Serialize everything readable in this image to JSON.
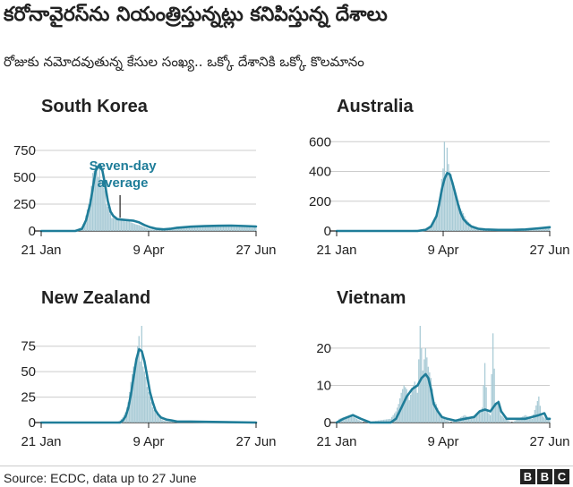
{
  "title": "కరోనావైరస్‌ను నియంత్రిస్తున్నట్లు కనిపిస్తున్న దేశాలు",
  "subtitle": "రోజుకు నమోదవుతున్న కేసుల సంఖ్య.. ఒక్కో దేశానికి ఒక్కో కొలమానం",
  "source": "Source: ECDC, data up to 27 June",
  "logo": [
    "B",
    "B",
    "C"
  ],
  "colors": {
    "bar": "#a9cbd6",
    "line": "#1f7d99",
    "axis": "#222222",
    "grid": "#cccccc",
    "text": "#222222"
  },
  "chart_data": [
    {
      "type": "bar",
      "title": "South Korea",
      "x_ticks": [
        "21 Jan",
        "9 Apr",
        "27 Jun"
      ],
      "ylim": [
        0,
        900
      ],
      "y_ticks": [
        "0",
        "250",
        "500",
        "750"
      ],
      "y_tick_values": [
        0,
        250,
        500,
        750
      ],
      "annotation": "Seven-day average",
      "annotation_lines": [
        "Seven-day",
        "average"
      ],
      "series": [
        {
          "name": "Daily cases",
          "points": [
            [
              0,
              0
            ],
            [
              20,
              0
            ],
            [
              25,
              3
            ],
            [
              30,
              40
            ],
            [
              32,
              90
            ],
            [
              34,
              200
            ],
            [
              36,
              300
            ],
            [
              38,
              540
            ],
            [
              39,
              560
            ],
            [
              40,
              640
            ],
            [
              41,
              580
            ],
            [
              42,
              500
            ],
            [
              43,
              600
            ],
            [
              44,
              480
            ],
            [
              45,
              430
            ],
            [
              47,
              380
            ],
            [
              48,
              250
            ],
            [
              50,
              200
            ],
            [
              52,
              120
            ],
            [
              54,
              125
            ],
            [
              56,
              100
            ],
            [
              58,
              120
            ],
            [
              60,
              100
            ],
            [
              62,
              90
            ],
            [
              64,
              110
            ],
            [
              66,
              80
            ],
            [
              68,
              70
            ],
            [
              70,
              60
            ],
            [
              72,
              55
            ],
            [
              75,
              40
            ],
            [
              78,
              25
            ],
            [
              80,
              15
            ],
            [
              85,
              12
            ],
            [
              90,
              10
            ],
            [
              95,
              30
            ],
            [
              100,
              40
            ],
            [
              105,
              35
            ],
            [
              110,
              50
            ],
            [
              115,
              40
            ],
            [
              120,
              45
            ],
            [
              125,
              50
            ],
            [
              130,
              48
            ],
            [
              135,
              45
            ],
            [
              140,
              55
            ],
            [
              145,
              40
            ],
            [
              150,
              50
            ],
            [
              155,
              30
            ],
            [
              158,
              45
            ]
          ]
        },
        {
          "name": "Seven-day average",
          "points": [
            [
              0,
              0
            ],
            [
              25,
              0
            ],
            [
              30,
              20
            ],
            [
              33,
              100
            ],
            [
              36,
              250
            ],
            [
              38,
              400
            ],
            [
              40,
              560
            ],
            [
              42,
              600
            ],
            [
              43,
              620
            ],
            [
              45,
              560
            ],
            [
              47,
              430
            ],
            [
              49,
              280
            ],
            [
              51,
              180
            ],
            [
              53,
              140
            ],
            [
              56,
              110
            ],
            [
              60,
              105
            ],
            [
              64,
              100
            ],
            [
              68,
              95
            ],
            [
              72,
              80
            ],
            [
              76,
              55
            ],
            [
              80,
              35
            ],
            [
              85,
              20
            ],
            [
              90,
              15
            ],
            [
              95,
              20
            ],
            [
              100,
              30
            ],
            [
              110,
              40
            ],
            [
              120,
              45
            ],
            [
              130,
              48
            ],
            [
              140,
              50
            ],
            [
              150,
              46
            ],
            [
              158,
              42
            ]
          ]
        }
      ]
    },
    {
      "type": "bar",
      "title": "Australia",
      "x_ticks": [
        "21 Jan",
        "9 Apr",
        "27 Jun"
      ],
      "ylim": [
        0,
        650
      ],
      "y_ticks": [
        "0",
        "200",
        "400",
        "600"
      ],
      "y_tick_values": [
        0,
        200,
        400,
        600
      ],
      "series": [
        {
          "name": "Daily cases",
          "points": [
            [
              0,
              0
            ],
            [
              40,
              0
            ],
            [
              50,
              3
            ],
            [
              60,
              8
            ],
            [
              66,
              15
            ],
            [
              70,
              40
            ],
            [
              73,
              80
            ],
            [
              75,
              140
            ],
            [
              77,
              250
            ],
            [
              78,
              350
            ],
            [
              79,
              420
            ],
            [
              80,
              600
            ],
            [
              81,
              380
            ],
            [
              82,
              560
            ],
            [
              83,
              450
            ],
            [
              84,
              400
            ],
            [
              85,
              380
            ],
            [
              86,
              300
            ],
            [
              88,
              260
            ],
            [
              90,
              200
            ],
            [
              92,
              150
            ],
            [
              94,
              120
            ],
            [
              96,
              80
            ],
            [
              98,
              60
            ],
            [
              100,
              40
            ],
            [
              104,
              20
            ],
            [
              110,
              10
            ],
            [
              120,
              6
            ],
            [
              130,
              5
            ],
            [
              140,
              8
            ],
            [
              150,
              15
            ],
            [
              158,
              22
            ]
          ]
        },
        {
          "name": "Seven-day average",
          "points": [
            [
              0,
              0
            ],
            [
              60,
              0
            ],
            [
              66,
              8
            ],
            [
              70,
              30
            ],
            [
              74,
              100
            ],
            [
              76,
              180
            ],
            [
              78,
              280
            ],
            [
              80,
              350
            ],
            [
              82,
              390
            ],
            [
              84,
              380
            ],
            [
              86,
              320
            ],
            [
              88,
              250
            ],
            [
              90,
              180
            ],
            [
              92,
              120
            ],
            [
              94,
              80
            ],
            [
              97,
              50
            ],
            [
              100,
              30
            ],
            [
              105,
              15
            ],
            [
              110,
              10
            ],
            [
              120,
              7
            ],
            [
              130,
              7
            ],
            [
              140,
              10
            ],
            [
              150,
              18
            ],
            [
              158,
              25
            ]
          ]
        }
      ]
    },
    {
      "type": "bar",
      "title": "New Zealand",
      "x_ticks": [
        "21 Jan",
        "9 Apr",
        "27 Jun"
      ],
      "ylim": [
        0,
        95
      ],
      "y_ticks": [
        "0",
        "25",
        "50",
        "75"
      ],
      "y_tick_values": [
        0,
        25,
        50,
        75
      ],
      "series": [
        {
          "name": "Daily cases",
          "points": [
            [
              0,
              0
            ],
            [
              55,
              0
            ],
            [
              58,
              2
            ],
            [
              60,
              5
            ],
            [
              62,
              10
            ],
            [
              64,
              20
            ],
            [
              66,
              40
            ],
            [
              68,
              55
            ],
            [
              70,
              60
            ],
            [
              71,
              75
            ],
            [
              72,
              85
            ],
            [
              73,
              60
            ],
            [
              74,
              95
            ],
            [
              75,
              55
            ],
            [
              76,
              50
            ],
            [
              77,
              45
            ],
            [
              78,
              35
            ],
            [
              80,
              25
            ],
            [
              82,
              15
            ],
            [
              84,
              10
            ],
            [
              86,
              6
            ],
            [
              88,
              4
            ],
            [
              90,
              2
            ],
            [
              95,
              1
            ],
            [
              100,
              0
            ],
            [
              158,
              0
            ]
          ]
        },
        {
          "name": "Seven-day average",
          "points": [
            [
              0,
              0
            ],
            [
              58,
              0
            ],
            [
              60,
              2
            ],
            [
              62,
              6
            ],
            [
              64,
              14
            ],
            [
              66,
              28
            ],
            [
              68,
              45
            ],
            [
              70,
              62
            ],
            [
              72,
              72
            ],
            [
              74,
              70
            ],
            [
              76,
              60
            ],
            [
              78,
              45
            ],
            [
              80,
              30
            ],
            [
              82,
              20
            ],
            [
              84,
              12
            ],
            [
              86,
              8
            ],
            [
              88,
              5
            ],
            [
              92,
              3
            ],
            [
              96,
              2
            ],
            [
              100,
              1
            ],
            [
              110,
              1
            ],
            [
              158,
              0
            ]
          ]
        }
      ]
    },
    {
      "type": "bar",
      "title": "Vietnam",
      "x_ticks": [
        "21 Jan",
        "9 Apr",
        "27 Jun"
      ],
      "ylim": [
        0,
        26
      ],
      "y_ticks": [
        "0",
        "10",
        "20"
      ],
      "y_tick_values": [
        0,
        10,
        20
      ],
      "series": [
        {
          "name": "Daily cases",
          "points": [
            [
              0,
              0
            ],
            [
              2,
              1
            ],
            [
              10,
              2
            ],
            [
              15,
              1
            ],
            [
              20,
              0
            ],
            [
              40,
              1
            ],
            [
              44,
              3
            ],
            [
              46,
              5
            ],
            [
              48,
              8
            ],
            [
              50,
              10
            ],
            [
              52,
              9
            ],
            [
              54,
              6
            ],
            [
              56,
              9
            ],
            [
              58,
              11
            ],
            [
              60,
              8
            ],
            [
              62,
              26
            ],
            [
              64,
              14
            ],
            [
              66,
              20
            ],
            [
              68,
              15
            ],
            [
              70,
              12
            ],
            [
              72,
              6
            ],
            [
              74,
              5
            ],
            [
              76,
              3
            ],
            [
              78,
              2
            ],
            [
              80,
              1
            ],
            [
              85,
              0
            ],
            [
              90,
              1
            ],
            [
              95,
              2
            ],
            [
              100,
              1
            ],
            [
              104,
              2
            ],
            [
              108,
              4
            ],
            [
              110,
              16
            ],
            [
              112,
              3
            ],
            [
              114,
              2
            ],
            [
              116,
              24
            ],
            [
              118,
              5
            ],
            [
              120,
              6
            ],
            [
              122,
              2
            ],
            [
              125,
              1
            ],
            [
              130,
              0
            ],
            [
              135,
              1
            ],
            [
              140,
              2
            ],
            [
              145,
              1
            ],
            [
              150,
              7
            ],
            [
              152,
              2
            ],
            [
              155,
              1
            ],
            [
              158,
              1
            ]
          ]
        },
        {
          "name": "Seven-day average",
          "points": [
            [
              0,
              0
            ],
            [
              5,
              1
            ],
            [
              12,
              2
            ],
            [
              18,
              1
            ],
            [
              25,
              0
            ],
            [
              40,
              0
            ],
            [
              44,
              1
            ],
            [
              48,
              4
            ],
            [
              52,
              7
            ],
            [
              56,
              9
            ],
            [
              60,
              10
            ],
            [
              63,
              12
            ],
            [
              66,
              13
            ],
            [
              68,
              12
            ],
            [
              70,
              9
            ],
            [
              72,
              5
            ],
            [
              75,
              3
            ],
            [
              78,
              1.5
            ],
            [
              82,
              1
            ],
            [
              88,
              0.5
            ],
            [
              95,
              1
            ],
            [
              102,
              1.5
            ],
            [
              106,
              3
            ],
            [
              110,
              3.5
            ],
            [
              114,
              3
            ],
            [
              118,
              5
            ],
            [
              120,
              5.5
            ],
            [
              122,
              3
            ],
            [
              126,
              1
            ],
            [
              130,
              1
            ],
            [
              140,
              1
            ],
            [
              150,
              2
            ],
            [
              154,
              2.5
            ],
            [
              156,
              1
            ],
            [
              158,
              1
            ]
          ]
        }
      ]
    }
  ]
}
